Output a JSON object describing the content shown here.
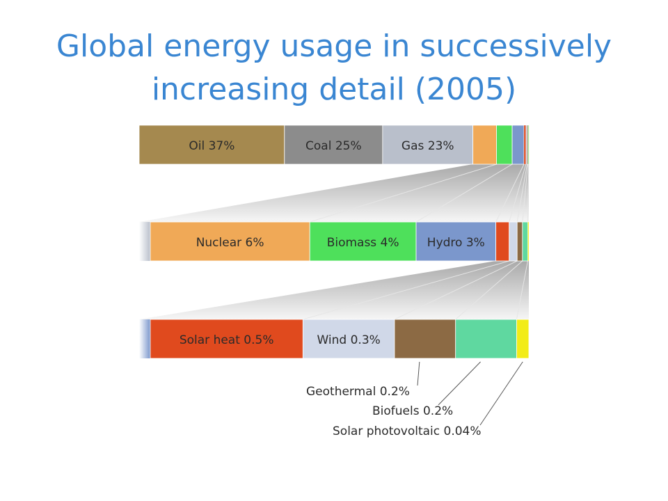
{
  "slide": {
    "title_line1": "Global energy usage in successively",
    "title_line2": "increasing detail (2005)"
  },
  "chart_data": {
    "type": "bar",
    "subtype": "nested-stacked-percentage-bars",
    "title": "Global energy usage in successively increasing detail (2005)",
    "unit": "%",
    "rows": [
      {
        "segments": [
          {
            "label": "Oil 37%",
            "name": "Oil",
            "value": 37,
            "color": "#a5894f"
          },
          {
            "label": "Coal 25%",
            "name": "Coal",
            "value": 25,
            "color": "#8c8c8c"
          },
          {
            "label": "Gas 23%",
            "name": "Gas",
            "value": 23,
            "color": "#b9bfcb"
          },
          {
            "label": "",
            "name": "Nuclear",
            "value": 6,
            "color": "#f0a957"
          },
          {
            "label": "",
            "name": "Biomass",
            "value": 4,
            "color": "#4ee05b"
          },
          {
            "label": "",
            "name": "Hydro",
            "value": 3,
            "color": "#7b97cc"
          },
          {
            "label": "",
            "name": "Solar heat",
            "value": 0.5,
            "color": "#e04a1e"
          },
          {
            "label": "",
            "name": "Wind",
            "value": 0.3,
            "color": "#d0d8e8"
          },
          {
            "label": "",
            "name": "Geothermal",
            "value": 0.2,
            "color": "#8c6a44"
          },
          {
            "label": "",
            "name": "Biofuels",
            "value": 0.2,
            "color": "#5fd8a0"
          },
          {
            "label": "",
            "name": "Solar photovoltaic",
            "value": 0.04,
            "color": "#f2ec18"
          }
        ]
      },
      {
        "segments": [
          {
            "label": "Nuclear 6%",
            "name": "Nuclear",
            "value": 6,
            "color": "#f0a957"
          },
          {
            "label": "Biomass 4%",
            "name": "Biomass",
            "value": 4,
            "color": "#4ee05b"
          },
          {
            "label": "Hydro 3%",
            "name": "Hydro",
            "value": 3,
            "color": "#7b97cc"
          },
          {
            "label": "",
            "name": "Solar heat",
            "value": 0.5,
            "color": "#e04a1e"
          },
          {
            "label": "",
            "name": "Wind",
            "value": 0.3,
            "color": "#d0d8e8"
          },
          {
            "label": "",
            "name": "Geothermal",
            "value": 0.2,
            "color": "#8c6a44"
          },
          {
            "label": "",
            "name": "Biofuels",
            "value": 0.2,
            "color": "#5fd8a0"
          },
          {
            "label": "",
            "name": "Solar photovoltaic",
            "value": 0.04,
            "color": "#f2ec18"
          }
        ]
      },
      {
        "segments": [
          {
            "label": "Solar heat 0.5%",
            "name": "Solar heat",
            "value": 0.5,
            "color": "#e04a1e"
          },
          {
            "label": "Wind 0.3%",
            "name": "Wind",
            "value": 0.3,
            "color": "#d0d8e8"
          },
          {
            "label": "",
            "name": "Geothermal",
            "value": 0.2,
            "color": "#8c6a44"
          },
          {
            "label": "",
            "name": "Biofuels",
            "value": 0.2,
            "color": "#5fd8a0"
          },
          {
            "label": "",
            "name": "Solar photovoltaic",
            "value": 0.04,
            "color": "#f2ec18"
          }
        ]
      }
    ],
    "callouts": [
      {
        "text": "Geothermal 0.2%",
        "name": "Geothermal"
      },
      {
        "text": "Biofuels 0.2%",
        "name": "Biofuels"
      },
      {
        "text": "Solar photovoltaic 0.04%",
        "name": "Solar photovoltaic"
      }
    ]
  }
}
